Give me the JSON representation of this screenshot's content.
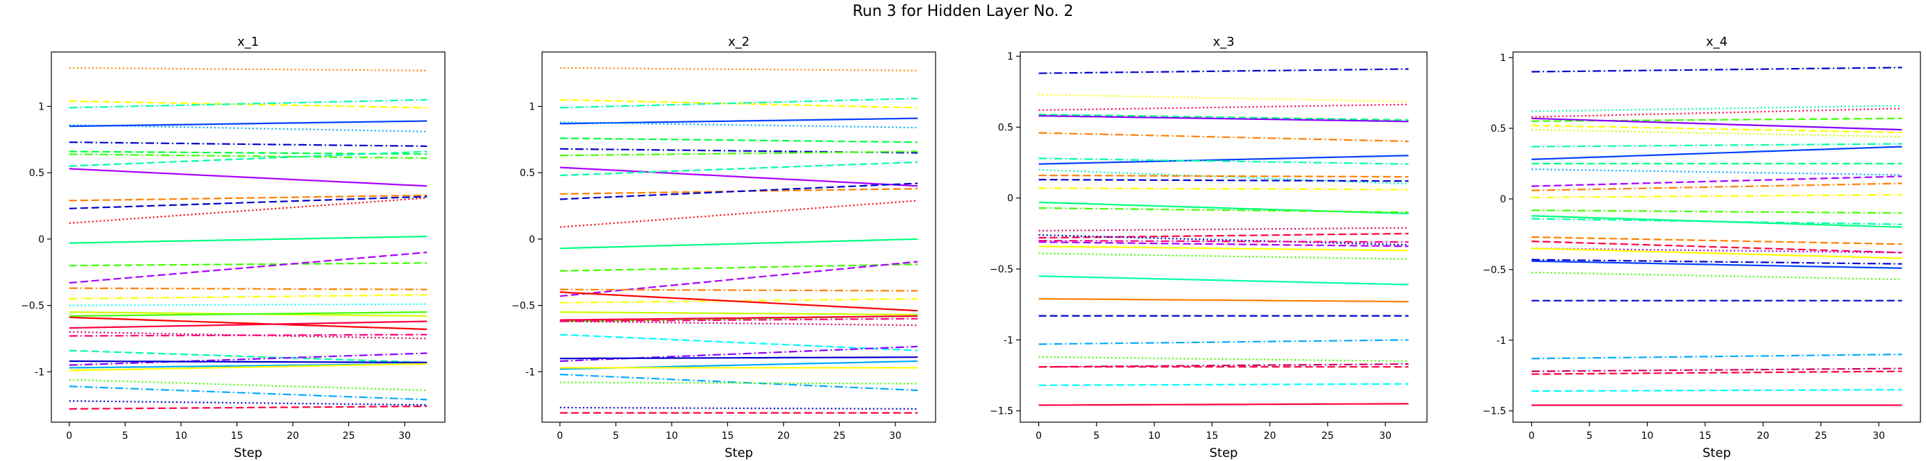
{
  "figure": {
    "suptitle": "Run 3 for Hidden Layer No. 2"
  },
  "chart_data": [
    {
      "type": "line",
      "title": "x_1",
      "xlabel": "Step",
      "ylabel": "",
      "xlim": [
        -1.6,
        33.6
      ],
      "ylim": [
        -1.38,
        1.41
      ],
      "xticks": [
        0,
        5,
        10,
        15,
        20,
        25,
        30
      ],
      "yticks": [
        -1.0,
        -0.5,
        0.0,
        0.5,
        1.0
      ],
      "grid": false,
      "series": [
        {
          "color": "#ff7f00",
          "style": "dotted",
          "start": 1.29,
          "end": 1.27
        },
        {
          "color": "#ffff00",
          "style": "dashed",
          "start": 1.04,
          "end": 0.99
        },
        {
          "color": "#00ffaa",
          "style": "dashdot",
          "start": 0.99,
          "end": 1.05
        },
        {
          "color": "#00aaff",
          "style": "dotted",
          "start": 0.86,
          "end": 0.81
        },
        {
          "color": "#0040ff",
          "style": "solid",
          "start": 0.85,
          "end": 0.89
        },
        {
          "color": "#0000cc",
          "style": "dashdot",
          "start": 0.73,
          "end": 0.7
        },
        {
          "color": "#00ff40",
          "style": "dashed",
          "start": 0.66,
          "end": 0.64
        },
        {
          "color": "#40ff00",
          "style": "dashdot",
          "start": 0.64,
          "end": 0.61
        },
        {
          "color": "#00ffaa",
          "style": "dashed",
          "start": 0.55,
          "end": 0.66
        },
        {
          "color": "#aa00ff",
          "style": "solid",
          "start": 0.53,
          "end": 0.4
        },
        {
          "color": "#ff7f00",
          "style": "dashed",
          "start": 0.29,
          "end": 0.33
        },
        {
          "color": "#0000cc",
          "style": "dashed",
          "start": 0.23,
          "end": 0.32
        },
        {
          "color": "#ff0000",
          "style": "dotted",
          "start": 0.12,
          "end": 0.31
        },
        {
          "color": "#00ff80",
          "style": "solid",
          "start": -0.03,
          "end": 0.02
        },
        {
          "color": "#40ff00",
          "style": "dashed",
          "start": -0.2,
          "end": -0.18
        },
        {
          "color": "#aa00ff",
          "style": "dashed",
          "start": -0.33,
          "end": -0.1
        },
        {
          "color": "#ff7f00",
          "style": "dashdot",
          "start": -0.37,
          "end": -0.38
        },
        {
          "color": "#ffff00",
          "style": "dashdot",
          "start": -0.45,
          "end": -0.42
        },
        {
          "color": "#00ffff",
          "style": "dotted",
          "start": -0.5,
          "end": -0.49
        },
        {
          "color": "#ccff00",
          "style": "solid",
          "start": -0.55,
          "end": -0.58
        },
        {
          "color": "#40ff00",
          "style": "solid",
          "start": -0.58,
          "end": -0.55
        },
        {
          "color": "#ff0000",
          "style": "solid",
          "start": -0.59,
          "end": -0.68
        },
        {
          "color": "#ff0040",
          "style": "solid",
          "start": -0.67,
          "end": -0.62
        },
        {
          "color": "#cc0066",
          "style": "dotted",
          "start": -0.7,
          "end": -0.75
        },
        {
          "color": "#ff0080",
          "style": "dashdot",
          "start": -0.73,
          "end": -0.72
        },
        {
          "color": "#00ffaa",
          "style": "dashed",
          "start": -0.84,
          "end": -0.93
        },
        {
          "color": "#8800ff",
          "style": "dashdot",
          "start": -0.95,
          "end": -0.86
        },
        {
          "color": "#0000cc",
          "style": "solid",
          "start": -0.92,
          "end": -0.93
        },
        {
          "color": "#00aaff",
          "style": "solid",
          "start": -0.97,
          "end": -0.94
        },
        {
          "color": "#ffff00",
          "style": "solid",
          "start": -0.99,
          "end": -0.94
        },
        {
          "color": "#40ff00",
          "style": "dotted",
          "start": -1.06,
          "end": -1.14
        },
        {
          "color": "#00aaff",
          "style": "dashdot",
          "start": -1.11,
          "end": -1.21
        },
        {
          "color": "#0000cc",
          "style": "dotted",
          "start": -1.22,
          "end": -1.25
        },
        {
          "color": "#ff0040",
          "style": "dashed",
          "start": -1.28,
          "end": -1.26
        }
      ]
    },
    {
      "type": "line",
      "title": "x_2",
      "xlabel": "Step",
      "ylabel": "",
      "xlim": [
        -1.6,
        33.6
      ],
      "ylim": [
        -1.38,
        1.41
      ],
      "xticks": [
        0,
        5,
        10,
        15,
        20,
        25,
        30
      ],
      "yticks": [
        -1.0,
        -0.5,
        0.0,
        0.5,
        1.0
      ],
      "grid": false,
      "series": [
        {
          "color": "#ff7f00",
          "style": "dotted",
          "start": 1.29,
          "end": 1.27
        },
        {
          "color": "#ffff00",
          "style": "dashed",
          "start": 1.05,
          "end": 0.99
        },
        {
          "color": "#00ffaa",
          "style": "dashdot",
          "start": 0.99,
          "end": 1.06
        },
        {
          "color": "#0040ff",
          "style": "solid",
          "start": 0.87,
          "end": 0.91
        },
        {
          "color": "#00aaff",
          "style": "dotted",
          "start": 0.88,
          "end": 0.84
        },
        {
          "color": "#00ff40",
          "style": "dashed",
          "start": 0.76,
          "end": 0.73
        },
        {
          "color": "#0000cc",
          "style": "dashdot",
          "start": 0.68,
          "end": 0.65
        },
        {
          "color": "#40ff00",
          "style": "dashdot",
          "start": 0.63,
          "end": 0.66
        },
        {
          "color": "#aa00ff",
          "style": "solid",
          "start": 0.54,
          "end": 0.4
        },
        {
          "color": "#00ffaa",
          "style": "dashed",
          "start": 0.48,
          "end": 0.58
        },
        {
          "color": "#ff7f00",
          "style": "dashed",
          "start": 0.34,
          "end": 0.38
        },
        {
          "color": "#0000cc",
          "style": "dashed",
          "start": 0.3,
          "end": 0.42
        },
        {
          "color": "#ff0000",
          "style": "dotted",
          "start": 0.09,
          "end": 0.29
        },
        {
          "color": "#00ff80",
          "style": "solid",
          "start": -0.07,
          "end": 0.0
        },
        {
          "color": "#40ff00",
          "style": "dashed",
          "start": -0.24,
          "end": -0.19
        },
        {
          "color": "#aa00ff",
          "style": "dashed",
          "start": -0.43,
          "end": -0.17
        },
        {
          "color": "#ff7f00",
          "style": "dashdot",
          "start": -0.38,
          "end": -0.39
        },
        {
          "color": "#ffff00",
          "style": "dashdot",
          "start": -0.48,
          "end": -0.45
        },
        {
          "color": "#ff0000",
          "style": "solid",
          "start": -0.4,
          "end": -0.54
        },
        {
          "color": "#ccff00",
          "style": "solid",
          "start": -0.55,
          "end": -0.57
        },
        {
          "color": "#40ff00",
          "style": "solid",
          "start": -0.62,
          "end": -0.58
        },
        {
          "color": "#ff0040",
          "style": "solid",
          "start": -0.61,
          "end": -0.58
        },
        {
          "color": "#ff0080",
          "style": "dashdot",
          "start": -0.62,
          "end": -0.6
        },
        {
          "color": "#cc0066",
          "style": "dotted",
          "start": -0.62,
          "end": -0.65
        },
        {
          "color": "#00ffff",
          "style": "dashed",
          "start": -0.72,
          "end": -0.84
        },
        {
          "color": "#8800ff",
          "style": "dashdot",
          "start": -0.92,
          "end": -0.81
        },
        {
          "color": "#0000cc",
          "style": "solid",
          "start": -0.9,
          "end": -0.89
        },
        {
          "color": "#00aaff",
          "style": "solid",
          "start": -0.98,
          "end": -0.92
        },
        {
          "color": "#ffff00",
          "style": "solid",
          "start": -0.97,
          "end": -0.97
        },
        {
          "color": "#00aaff",
          "style": "dashdot",
          "start": -1.02,
          "end": -1.14
        },
        {
          "color": "#40ff00",
          "style": "dotted",
          "start": -1.08,
          "end": -1.09
        },
        {
          "color": "#0000cc",
          "style": "dotted",
          "start": -1.27,
          "end": -1.28
        },
        {
          "color": "#ff0040",
          "style": "dashed",
          "start": -1.31,
          "end": -1.31
        }
      ]
    },
    {
      "type": "line",
      "title": "x_3",
      "xlabel": "Step",
      "ylabel": "",
      "xlim": [
        -1.6,
        33.6
      ],
      "ylim": [
        -1.58,
        1.03
      ],
      "xticks": [
        0,
        5,
        10,
        15,
        20,
        25,
        30
      ],
      "yticks": [
        -1.5,
        -1.0,
        -0.5,
        0.0,
        0.5,
        1.0
      ],
      "grid": false,
      "series": [
        {
          "color": "#0000cc",
          "style": "dashdot",
          "start": 0.88,
          "end": 0.91
        },
        {
          "color": "#ffff00",
          "style": "dotted",
          "start": 0.73,
          "end": 0.68
        },
        {
          "color": "#ff0040",
          "style": "dotted",
          "start": 0.62,
          "end": 0.66
        },
        {
          "color": "#00ff80",
          "style": "dashed",
          "start": 0.59,
          "end": 0.55
        },
        {
          "color": "#8800ff",
          "style": "solid",
          "start": 0.58,
          "end": 0.54
        },
        {
          "color": "#ff7f00",
          "style": "dashdot",
          "start": 0.46,
          "end": 0.4
        },
        {
          "color": "#0040ff",
          "style": "solid",
          "start": 0.24,
          "end": 0.3
        },
        {
          "color": "#00ffaa",
          "style": "dashdot",
          "start": 0.28,
          "end": 0.24
        },
        {
          "color": "#00ffaa",
          "style": "dotted",
          "start": 0.2,
          "end": 0.1
        },
        {
          "color": "#ff7f00",
          "style": "dashed",
          "start": 0.16,
          "end": 0.15
        },
        {
          "color": "#0000cc",
          "style": "dashed",
          "start": 0.13,
          "end": 0.12
        },
        {
          "color": "#ffff00",
          "style": "dashdot",
          "start": 0.07,
          "end": 0.06
        },
        {
          "color": "#00ff80",
          "style": "solid",
          "start": -0.03,
          "end": -0.11
        },
        {
          "color": "#40ff00",
          "style": "dashdot",
          "start": -0.07,
          "end": -0.1
        },
        {
          "color": "#cc0066",
          "style": "dotted",
          "start": -0.23,
          "end": -0.21
        },
        {
          "color": "#ff0040",
          "style": "dashed",
          "start": -0.28,
          "end": -0.25
        },
        {
          "color": "#0000cc",
          "style": "dotted",
          "start": -0.26,
          "end": -0.33
        },
        {
          "color": "#ff0080",
          "style": "dashdot",
          "start": -0.3,
          "end": -0.31
        },
        {
          "color": "#ffff00",
          "style": "solid",
          "start": -0.34,
          "end": -0.37
        },
        {
          "color": "#aa00ff",
          "style": "dashed",
          "start": -0.31,
          "end": -0.34
        },
        {
          "color": "#40ff00",
          "style": "dotted",
          "start": -0.39,
          "end": -0.43
        },
        {
          "color": "#00ffaa",
          "style": "solid",
          "start": -0.55,
          "end": -0.61
        },
        {
          "color": "#ff7f00",
          "style": "solid",
          "start": -0.71,
          "end": -0.73
        },
        {
          "color": "#0000cc",
          "style": "dashed",
          "start": -0.83,
          "end": -0.83
        },
        {
          "color": "#00aaff",
          "style": "dashdot",
          "start": -1.03,
          "end": -1.0
        },
        {
          "color": "#40ff00",
          "style": "dotted",
          "start": -1.12,
          "end": -1.15
        },
        {
          "color": "#cc0066",
          "style": "dashdot",
          "start": -1.19,
          "end": -1.17
        },
        {
          "color": "#ff0040",
          "style": "dashed",
          "start": -1.19,
          "end": -1.19
        },
        {
          "color": "#00ffff",
          "style": "dashed",
          "start": -1.32,
          "end": -1.31
        },
        {
          "color": "#ff0040",
          "style": "solid",
          "start": -1.46,
          "end": -1.45
        }
      ]
    },
    {
      "type": "line",
      "title": "x_4",
      "xlabel": "Step",
      "ylabel": "",
      "xlim": [
        -1.6,
        33.6
      ],
      "ylim": [
        -1.58,
        1.04
      ],
      "xticks": [
        0,
        5,
        10,
        15,
        20,
        25,
        30
      ],
      "yticks": [
        -1.5,
        -1.0,
        -0.5,
        0.0,
        0.5,
        1.0
      ],
      "grid": false,
      "series": [
        {
          "color": "#0000cc",
          "style": "dashdot",
          "start": 0.9,
          "end": 0.93
        },
        {
          "color": "#00ffaa",
          "style": "dotted",
          "start": 0.62,
          "end": 0.66
        },
        {
          "color": "#ff0040",
          "style": "dotted",
          "start": 0.58,
          "end": 0.64
        },
        {
          "color": "#40ff00",
          "style": "dashed",
          "start": 0.55,
          "end": 0.57
        },
        {
          "color": "#8800ff",
          "style": "solid",
          "start": 0.57,
          "end": 0.49
        },
        {
          "color": "#ffff00",
          "style": "dashed",
          "start": 0.52,
          "end": 0.47
        },
        {
          "color": "#ccff00",
          "style": "dotted",
          "start": 0.49,
          "end": 0.44
        },
        {
          "color": "#00ffaa",
          "style": "dashdot",
          "start": 0.37,
          "end": 0.39
        },
        {
          "color": "#0040ff",
          "style": "solid",
          "start": 0.28,
          "end": 0.37
        },
        {
          "color": "#00ff80",
          "style": "dashed",
          "start": 0.25,
          "end": 0.25
        },
        {
          "color": "#00aaff",
          "style": "dotted",
          "start": 0.21,
          "end": 0.17
        },
        {
          "color": "#aa00ff",
          "style": "dashed",
          "start": 0.09,
          "end": 0.16
        },
        {
          "color": "#ff7f00",
          "style": "dashdot",
          "start": 0.06,
          "end": 0.11
        },
        {
          "color": "#ffff00",
          "style": "dashdot",
          "start": 0.01,
          "end": 0.03
        },
        {
          "color": "#40ff00",
          "style": "dashdot",
          "start": -0.08,
          "end": -0.1
        },
        {
          "color": "#00ff80",
          "style": "solid",
          "start": -0.12,
          "end": -0.2
        },
        {
          "color": "#00ffaa",
          "style": "dashdot",
          "start": -0.14,
          "end": -0.18
        },
        {
          "color": "#ff7f00",
          "style": "dashed",
          "start": -0.27,
          "end": -0.32
        },
        {
          "color": "#ff0040",
          "style": "dashed",
          "start": -0.3,
          "end": -0.38
        },
        {
          "color": "#aa00ff",
          "style": "dotted",
          "start": -0.35,
          "end": -0.38
        },
        {
          "color": "#ffff00",
          "style": "solid",
          "start": -0.35,
          "end": -0.42
        },
        {
          "color": "#0000cc",
          "style": "dashdot",
          "start": -0.43,
          "end": -0.46
        },
        {
          "color": "#0040ff",
          "style": "solid",
          "start": -0.44,
          "end": -0.49
        },
        {
          "color": "#40ff00",
          "style": "dotted",
          "start": -0.52,
          "end": -0.57
        },
        {
          "color": "#0000cc",
          "style": "dashed",
          "start": -0.72,
          "end": -0.72
        },
        {
          "color": "#00aaff",
          "style": "dashdot",
          "start": -1.13,
          "end": -1.1
        },
        {
          "color": "#ff0040",
          "style": "dashed",
          "start": -1.24,
          "end": -1.22
        },
        {
          "color": "#cc0066",
          "style": "dashdot",
          "start": -1.22,
          "end": -1.2
        },
        {
          "color": "#00ffff",
          "style": "dashed",
          "start": -1.36,
          "end": -1.35
        },
        {
          "color": "#ff0040",
          "style": "solid",
          "start": -1.46,
          "end": -1.46
        }
      ]
    }
  ]
}
